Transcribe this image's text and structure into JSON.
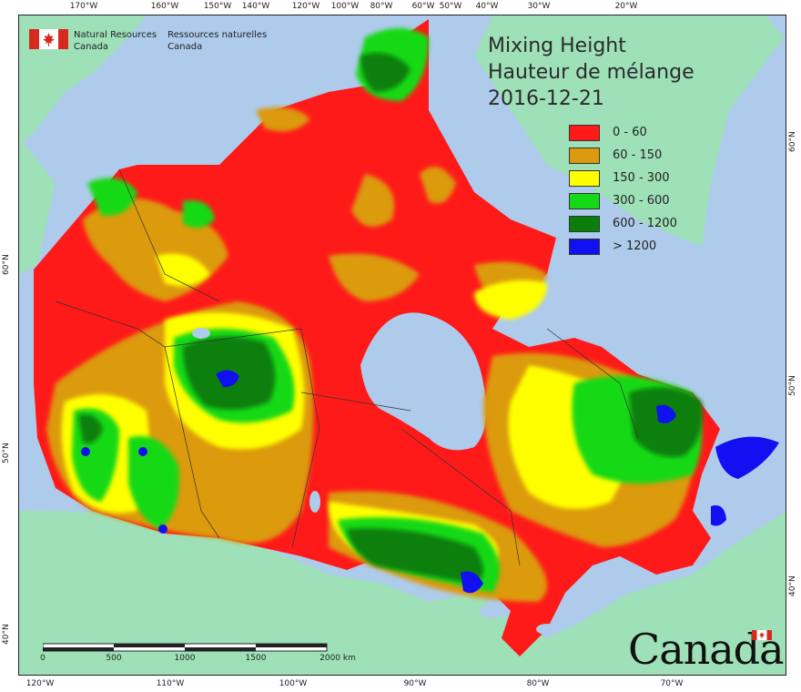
{
  "title": {
    "en": "Mixing Height",
    "fr": "Hauteur de mélange",
    "date": "2016-12-21"
  },
  "legend": [
    {
      "label": "0 - 60",
      "color": "#ff1a1a"
    },
    {
      "label": "60 - 150",
      "color": "#dc9a0e"
    },
    {
      "label": "150 - 300",
      "color": "#ffff00"
    },
    {
      "label": "300 - 600",
      "color": "#16d916"
    },
    {
      "label": "600 - 1200",
      "color": "#0a7f0a"
    },
    {
      "label": "> 1200",
      "color": "#1010f0"
    }
  ],
  "agency": {
    "en_line1": "Natural Resources",
    "en_line2": "Canada",
    "fr_line1": "Ressources naturelles",
    "fr_line2": "Canada"
  },
  "wordmark": "Canada",
  "scale": {
    "labels": [
      "0",
      "500",
      "1000",
      "1500",
      "2000  km"
    ]
  },
  "graticule": {
    "top": [
      "170°W",
      "160°W",
      "150°W",
      "140°W",
      "120°W",
      "100°W",
      "80°W",
      "60°W",
      "50°W",
      "40°W",
      "30°W",
      "20°W"
    ],
    "bottom": [
      "120°W",
      "110°W",
      "100°W",
      "90°W",
      "80°W",
      "70°W"
    ],
    "left": [
      "60°N",
      "50°N",
      "40°N"
    ],
    "right": [
      "60°N",
      "50°N",
      "40°N"
    ]
  },
  "colors": {
    "water": "#aecbeb",
    "foreign_land": "#9ee0b8",
    "boundary": "#333333"
  }
}
